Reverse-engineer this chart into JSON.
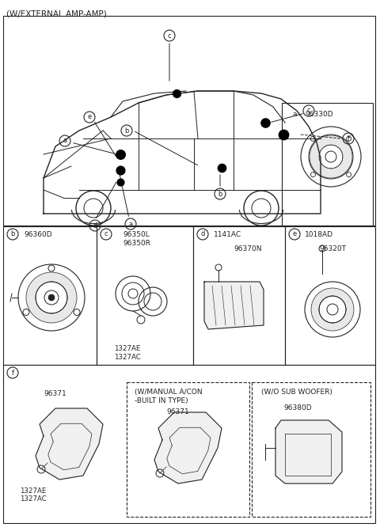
{
  "title": "(W/EXTERNAL AMP-AMP)",
  "bg_color": "#ffffff",
  "line_color": "#222222",
  "sections": {
    "a": {
      "label": "a",
      "part": "96330D"
    },
    "b": {
      "label": "b",
      "part": "96360D"
    },
    "c": {
      "label": "c",
      "parts": [
        "96350L",
        "96350R"
      ],
      "bolts": [
        "1327AE",
        "1327AC"
      ]
    },
    "d": {
      "label": "d",
      "parts": [
        "1141AC",
        "96370N"
      ]
    },
    "e": {
      "label": "e",
      "parts": [
        "1018AD",
        "96320T"
      ]
    },
    "f": {
      "label": "f",
      "parts": [
        "96371"
      ],
      "bolts": [
        "1327AE",
        "1327AC"
      ],
      "sub1_label": "(W/MANUAL A/CON\\n-BUILT IN TYPE)",
      "sub1_part": "96371",
      "sub2_label": "(W/O SUB WOOFER)",
      "sub2_part": "96380D"
    }
  }
}
